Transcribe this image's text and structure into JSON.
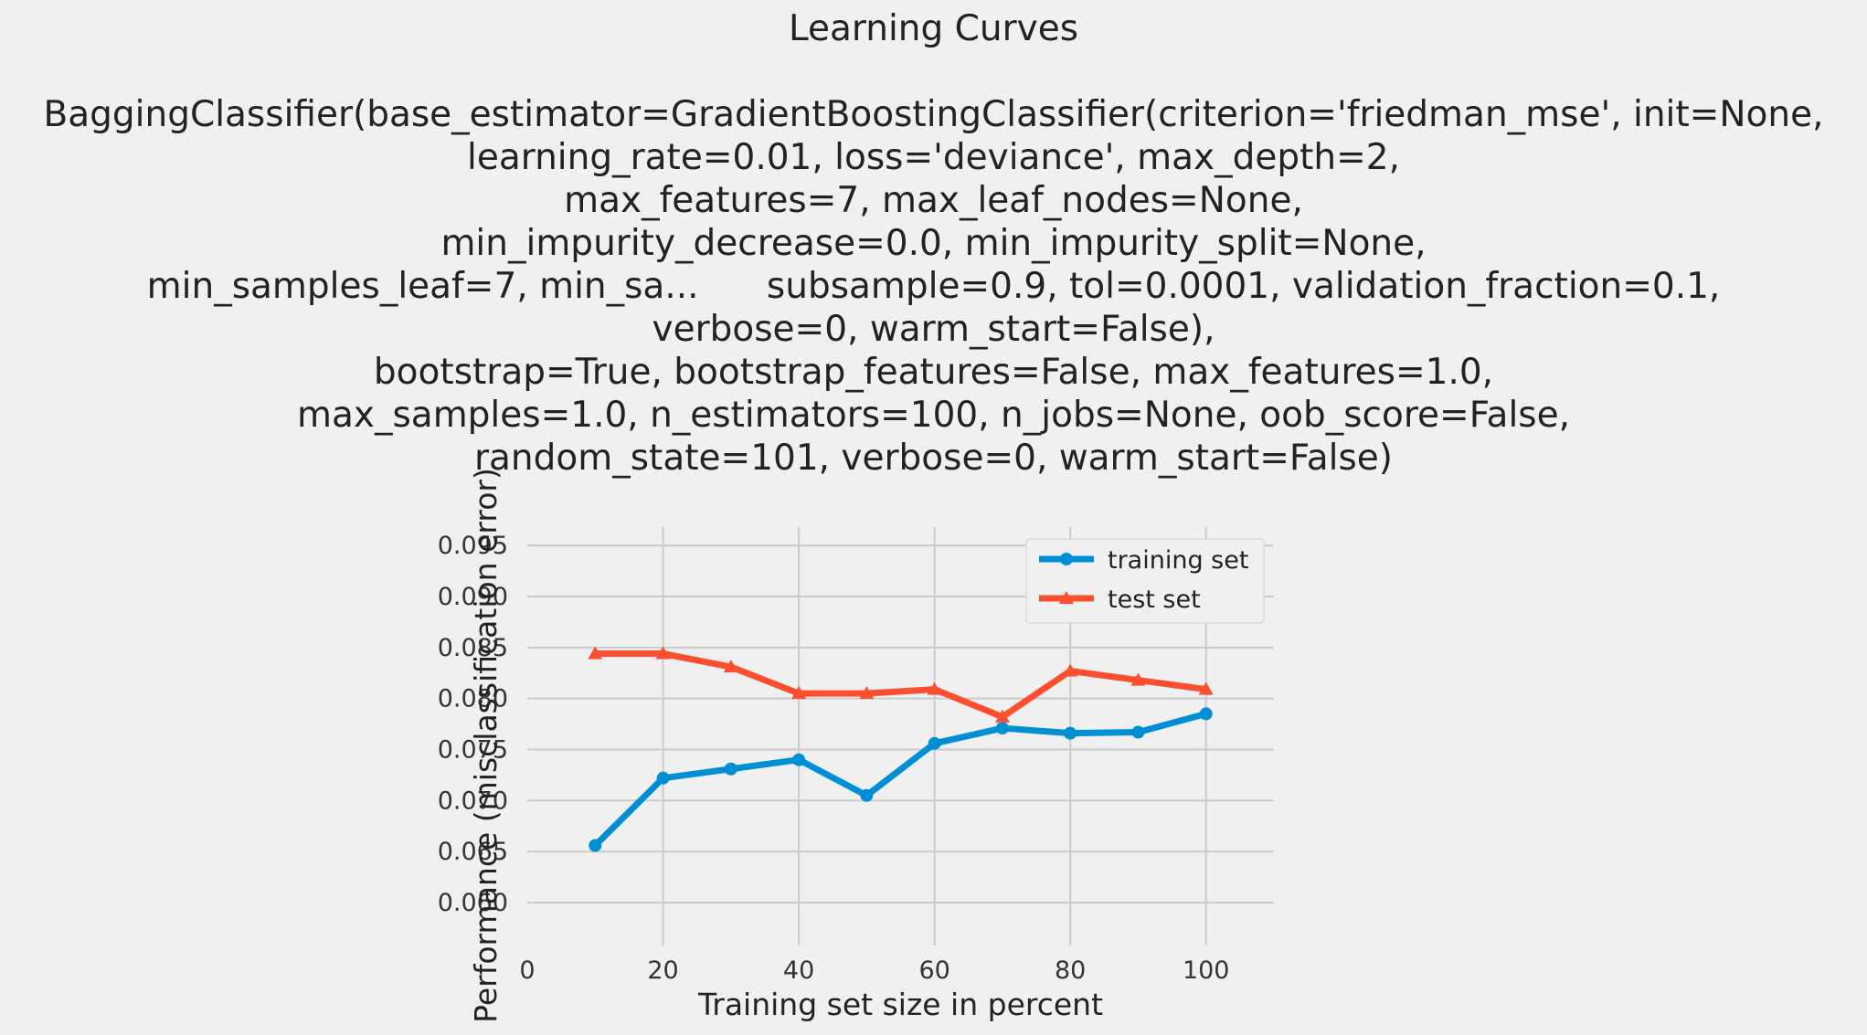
{
  "chart_data": {
    "type": "line",
    "title": "Learning Curves",
    "subtitle_lines": [
      "BaggingClassifier(base_estimator=GradientBoostingClassifier(criterion='friedman_mse', init=None,",
      "learning_rate=0.01, loss='deviance', max_depth=2,",
      "max_features=7, max_leaf_nodes=None,",
      "min_impurity_decrease=0.0, min_impurity_split=None,",
      "min_samples_leaf=7, min_sa...      subsample=0.9, tol=0.0001, validation_fraction=0.1,",
      "verbose=0, warm_start=False),",
      "bootstrap=True, bootstrap_features=False, max_features=1.0,",
      "max_samples=1.0, n_estimators=100, n_jobs=None, oob_score=False,",
      "random_state=101, verbose=0, warm_start=False)"
    ],
    "xlabel": "Training set size in percent",
    "ylabel": "Performance (misclassification error)",
    "xlim": [
      0,
      110
    ],
    "ylim": [
      0.0558,
      0.0968
    ],
    "xticks": [
      0,
      20,
      40,
      60,
      80,
      100
    ],
    "xtick_labels": [
      "0",
      "20",
      "40",
      "60",
      "80",
      "100"
    ],
    "yticks": [
      0.06,
      0.065,
      0.07,
      0.075,
      0.08,
      0.085,
      0.09,
      0.095
    ],
    "ytick_labels": [
      "0.060",
      "0.065",
      "0.070",
      "0.075",
      "0.080",
      "0.085",
      "0.090",
      "0.095"
    ],
    "grid": true,
    "legend_position": "top-right",
    "x": [
      10,
      20,
      30,
      40,
      50,
      60,
      70,
      80,
      90,
      100
    ],
    "series": [
      {
        "name": "training set",
        "marker": "circle",
        "color": "#008fd5",
        "values": [
          0.0656,
          0.0722,
          0.0731,
          0.074,
          0.0705,
          0.0756,
          0.0771,
          0.0766,
          0.0767,
          0.0785
        ]
      },
      {
        "name": "test set",
        "marker": "triangle",
        "color": "#fc4f30",
        "values": [
          0.0844,
          0.0844,
          0.0831,
          0.0805,
          0.0805,
          0.0809,
          0.0782,
          0.0827,
          0.0818,
          0.0809
        ]
      }
    ]
  },
  "colors": {
    "background": "#f0f0f0",
    "grid": "#cbcbcb",
    "text": "#222222"
  }
}
